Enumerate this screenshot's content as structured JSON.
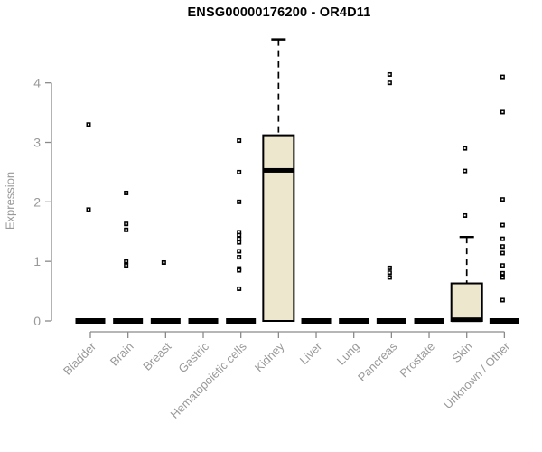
{
  "chart_data": {
    "type": "boxplot",
    "title": "ENSG00000176200 - OR4D11",
    "ylabel": "Expression",
    "ylim": [
      0,
      4.8
    ],
    "yticks": [
      0,
      1,
      2,
      3,
      4
    ],
    "grid": "off",
    "legend": "none",
    "categories": [
      "Bladder",
      "Brain",
      "Breast",
      "Gastric",
      "Hematopoietic cells",
      "Kidney",
      "Liver",
      "Lung",
      "Pancreas",
      "Prostate",
      "Skin",
      "Unknown / Other"
    ],
    "boxes": [
      {
        "category": "Bladder",
        "q1": 0,
        "median": 0,
        "q3": 0,
        "whisker_low": 0,
        "whisker_high": 0,
        "outliers": [
          3.3,
          1.87
        ]
      },
      {
        "category": "Brain",
        "q1": 0,
        "median": 0,
        "q3": 0,
        "whisker_low": 0,
        "whisker_high": 0,
        "outliers": [
          2.15,
          1.63,
          1.53,
          1.0,
          0.93
        ]
      },
      {
        "category": "Breast",
        "q1": 0,
        "median": 0,
        "q3": 0,
        "whisker_low": 0,
        "whisker_high": 0,
        "outliers": [
          0.98
        ]
      },
      {
        "category": "Gastric",
        "q1": 0,
        "median": 0,
        "q3": 0,
        "whisker_low": 0,
        "whisker_high": 0,
        "outliers": []
      },
      {
        "category": "Hematopoietic cells",
        "q1": 0,
        "median": 0,
        "q3": 0,
        "whisker_low": 0,
        "whisker_high": 0,
        "outliers": [
          3.03,
          2.5,
          2.0,
          1.49,
          1.44,
          1.38,
          1.32,
          1.17,
          1.07,
          0.88,
          0.85,
          0.54
        ]
      },
      {
        "category": "Kidney",
        "q1": 0,
        "median": 2.53,
        "q3": 3.12,
        "whisker_low": 0,
        "whisker_high": 4.73,
        "outliers": []
      },
      {
        "category": "Liver",
        "q1": 0,
        "median": 0,
        "q3": 0,
        "whisker_low": 0,
        "whisker_high": 0,
        "outliers": []
      },
      {
        "category": "Lung",
        "q1": 0,
        "median": 0,
        "q3": 0,
        "whisker_low": 0,
        "whisker_high": 0,
        "outliers": []
      },
      {
        "category": "Pancreas",
        "q1": 0,
        "median": 0,
        "q3": 0,
        "whisker_low": 0,
        "whisker_high": 0,
        "outliers": [
          4.14,
          4.0,
          0.89,
          0.81,
          0.73
        ]
      },
      {
        "category": "Prostate",
        "q1": 0,
        "median": 0,
        "q3": 0,
        "whisker_low": 0,
        "whisker_high": 0,
        "outliers": []
      },
      {
        "category": "Skin",
        "q1": 0,
        "median": 0.02,
        "q3": 0.63,
        "whisker_low": 0,
        "whisker_high": 1.41,
        "outliers": [
          2.9,
          2.52,
          1.77
        ]
      },
      {
        "category": "Unknown / Other",
        "q1": 0,
        "median": 0,
        "q3": 0,
        "whisker_low": 0,
        "whisker_high": 0,
        "outliers": [
          4.1,
          3.51,
          2.04,
          1.61,
          1.38,
          1.25,
          1.14,
          0.93,
          0.8,
          0.73,
          0.35
        ]
      }
    ],
    "style": {
      "box_fill": "#EDE7CE",
      "box_border": "#000000",
      "median_color": "#000000",
      "whisker_color": "#000000",
      "outlier_color": "#000000",
      "axis_color": "#8A8A8A",
      "tick_label_color": "#999999",
      "title_color": "#000000",
      "background": "#FFFFFF"
    }
  }
}
